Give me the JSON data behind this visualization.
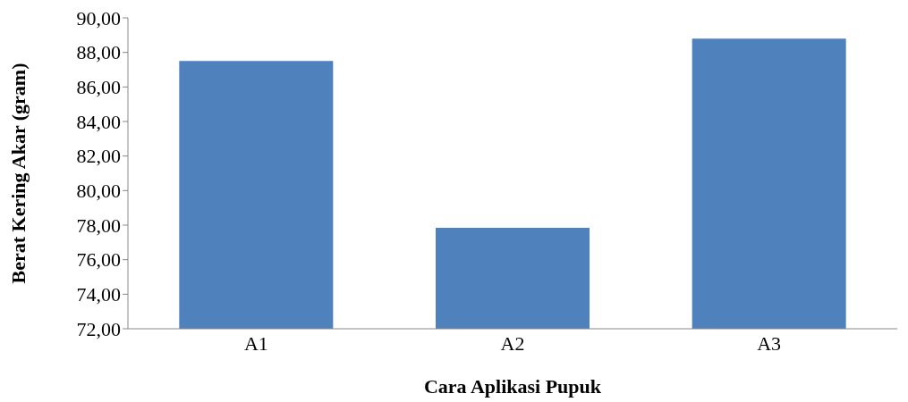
{
  "chart_data": {
    "type": "bar",
    "xlabel": "Cara Aplikasi Pupuk",
    "ylabel": "Berat Kering Akar (gram)",
    "categories": [
      "A1",
      "A2",
      "A3"
    ],
    "values": [
      87.5,
      77.85,
      88.8
    ],
    "color": "#4f81bd",
    "ylim": [
      72,
      90
    ],
    "yticks": [
      {
        "value": 72,
        "label": "72,00"
      },
      {
        "value": 74,
        "label": "74,00"
      },
      {
        "value": 76,
        "label": "76,00"
      },
      {
        "value": 78,
        "label": "78,00"
      },
      {
        "value": 80,
        "label": "80,00"
      },
      {
        "value": 82,
        "label": "82,00"
      },
      {
        "value": 84,
        "label": "84,00"
      },
      {
        "value": 86,
        "label": "86,00"
      },
      {
        "value": 88,
        "label": "88,00"
      },
      {
        "value": 90,
        "label": "90,00"
      }
    ],
    "grid": false
  }
}
